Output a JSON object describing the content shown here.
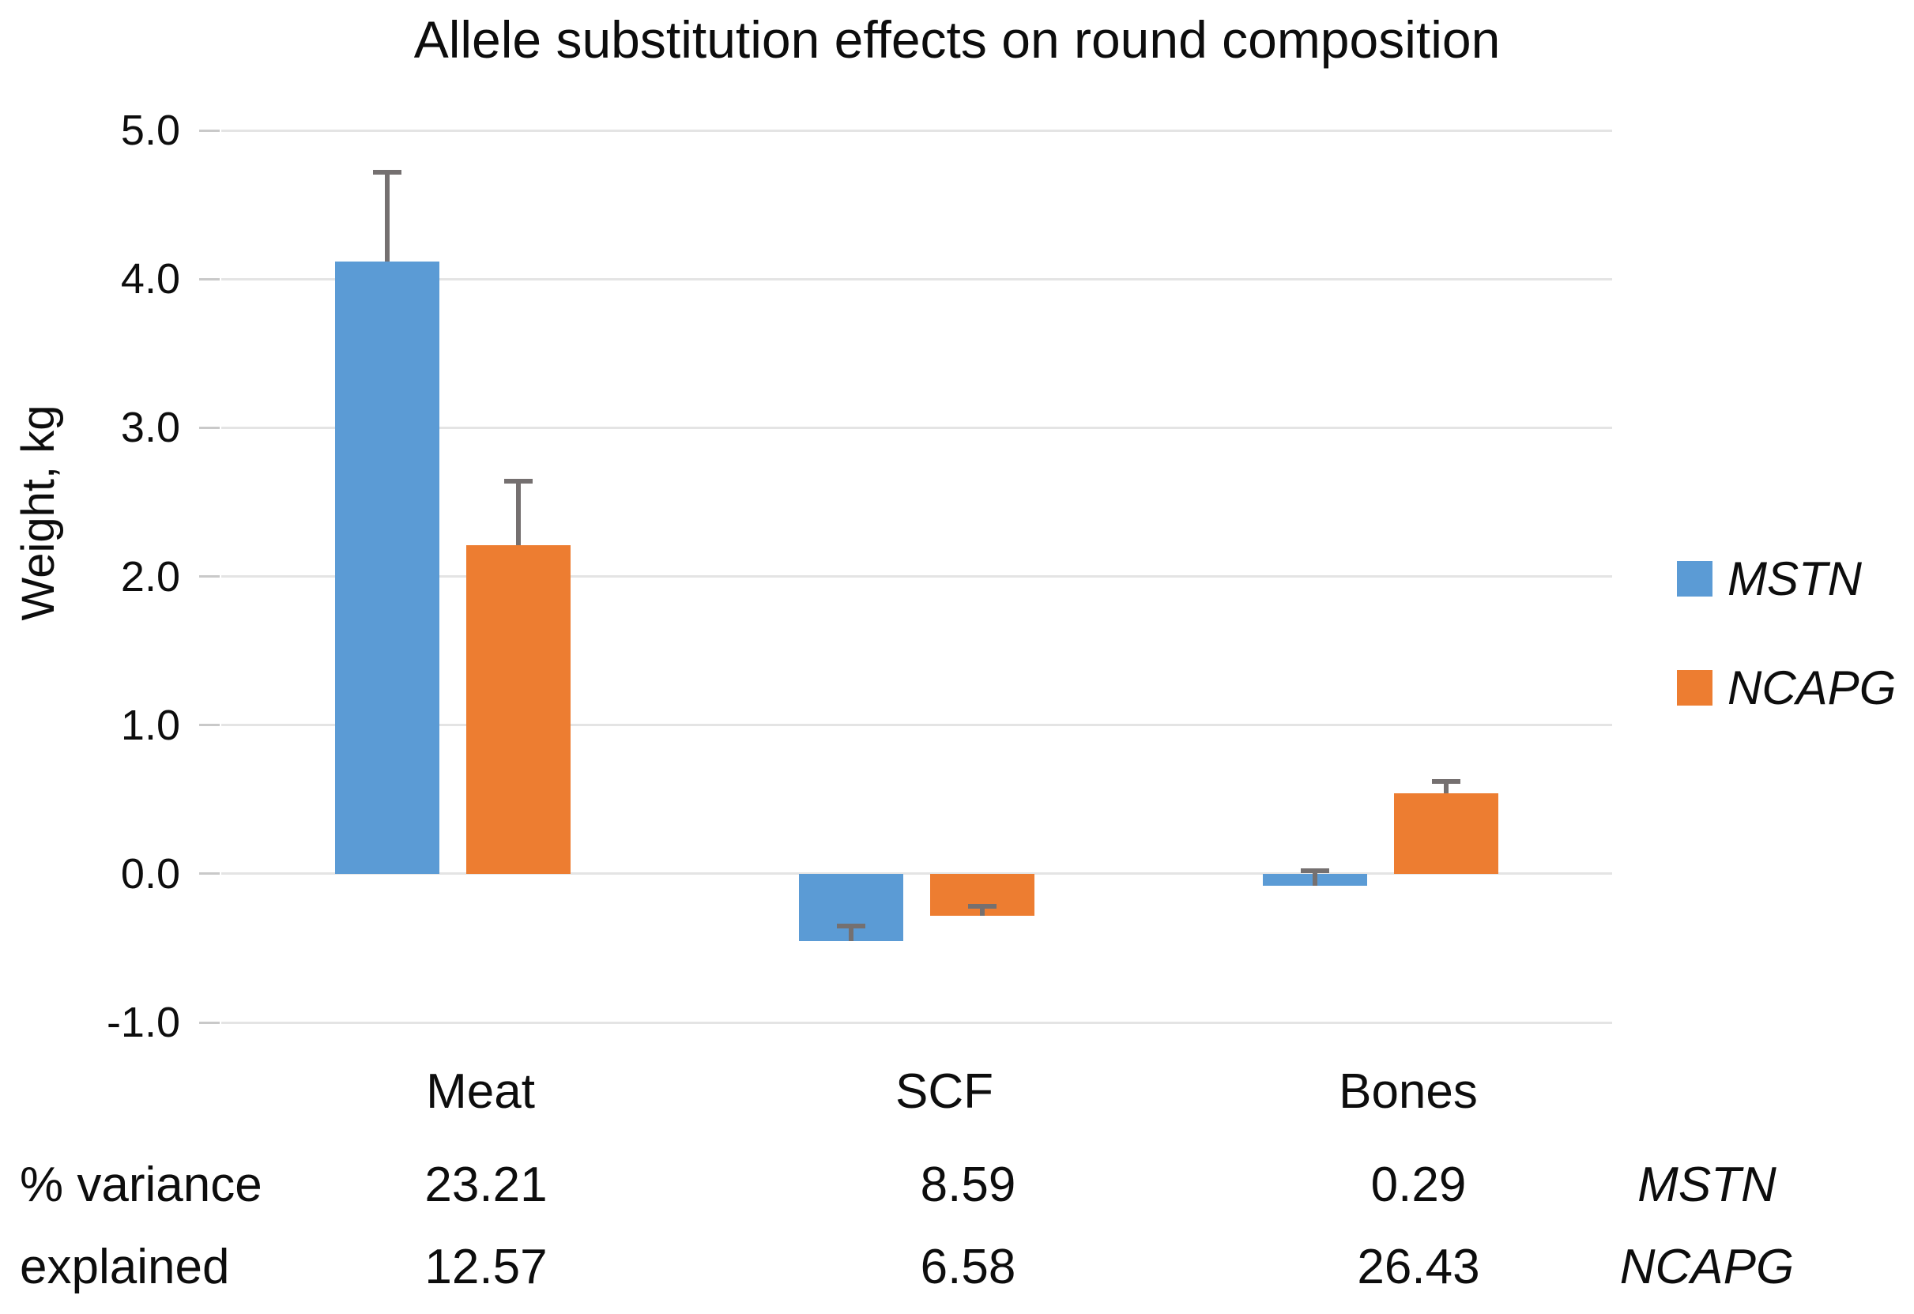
{
  "chart_data": {
    "type": "bar",
    "title": "Allele substitution effects on round composition",
    "ylabel": "Weight, kg",
    "xlabel": "",
    "ylim": [
      -1.0,
      5.0
    ],
    "ytick_step": 1.0,
    "ytick_labels": [
      "5.0",
      "4.0",
      "3.0",
      "2.0",
      "1.0",
      "0.0",
      "-1.0"
    ],
    "grid": true,
    "legend_position": "right",
    "categories": [
      "Meat",
      "SCF",
      "Bones"
    ],
    "series": [
      {
        "name": "MSTN",
        "color": "#5B9BD5",
        "values": [
          4.12,
          -0.45,
          -0.08
        ],
        "errors_plus": [
          0.6,
          0.1,
          0.1
        ]
      },
      {
        "name": "NCAPG",
        "color": "#ED7D31",
        "values": [
          2.21,
          -0.28,
          0.54
        ],
        "errors_plus": [
          0.43,
          0.06,
          0.08
        ]
      }
    ]
  },
  "legend": {
    "items": [
      {
        "label": "MSTN",
        "color": "#5B9BD5"
      },
      {
        "label": "NCAPG",
        "color": "#ED7D31"
      }
    ]
  },
  "variance_table": {
    "label_line1": "% variance",
    "label_line2": "explained",
    "columns": [
      "Meat",
      "SCF",
      "Bones"
    ],
    "rows": [
      {
        "gene": "MSTN",
        "values": [
          "23.21",
          "8.59",
          "0.29"
        ]
      },
      {
        "gene": "NCAPG",
        "values": [
          "12.57",
          "6.58",
          "26.43"
        ]
      }
    ]
  },
  "style": {
    "background": "#FFFFFF",
    "text_color": "#0D0D0D",
    "gridline_color": "#E4E4E4",
    "tick_color": "#C9C9C9",
    "error_bar_color": "#757070"
  }
}
